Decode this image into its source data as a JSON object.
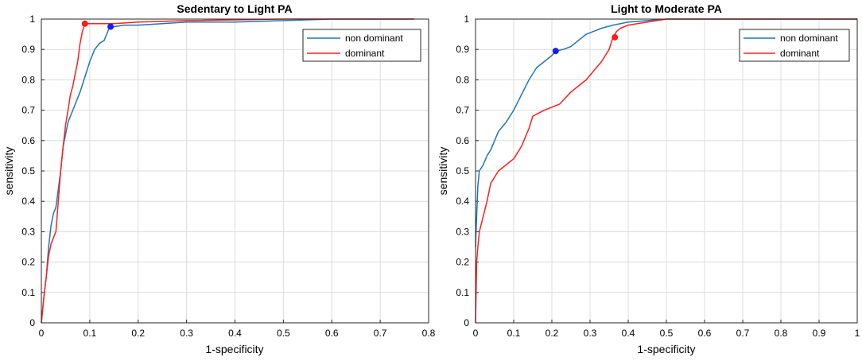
{
  "colors": {
    "non_dominant": "#1f77b4",
    "dominant": "#ff2020",
    "grid": "#dcdcdc",
    "marker_non_dominant": "#1a1aff",
    "marker_dominant": "#ff1a1a"
  },
  "chart_data": [
    {
      "type": "line",
      "title": "Sedentary to Light PA",
      "xlabel": "1-specificity",
      "ylabel": "sensitivity",
      "xlim": [
        0,
        0.8
      ],
      "ylim": [
        0,
        1
      ],
      "xticks": [
        "0",
        "0.1",
        "0.2",
        "0.3",
        "0.4",
        "0.5",
        "0.6",
        "0.7",
        "0.8"
      ],
      "yticks": [
        "0",
        "0.1",
        "0.2",
        "0.3",
        "0.4",
        "0.5",
        "0.6",
        "0.7",
        "0.8",
        "0.9",
        "1"
      ],
      "grid": true,
      "legend_position": "top-right",
      "series": [
        {
          "name": "non dominant",
          "x": [
            0,
            0.005,
            0.01,
            0.015,
            0.02,
            0.025,
            0.03,
            0.035,
            0.04,
            0.045,
            0.05,
            0.055,
            0.06,
            0.065,
            0.07,
            0.08,
            0.09,
            0.1,
            0.11,
            0.12,
            0.13,
            0.14,
            0.15,
            0.17,
            0.2,
            0.25,
            0.3,
            0.4,
            0.5,
            0.6,
            0.7,
            0.77
          ],
          "y": [
            0,
            0.08,
            0.15,
            0.25,
            0.32,
            0.36,
            0.38,
            0.44,
            0.5,
            0.58,
            0.62,
            0.66,
            0.68,
            0.7,
            0.72,
            0.76,
            0.81,
            0.86,
            0.9,
            0.92,
            0.93,
            0.97,
            0.975,
            0.98,
            0.98,
            0.985,
            0.99,
            0.99,
            0.995,
            1,
            1,
            1
          ]
        },
        {
          "name": "dominant",
          "x": [
            0,
            0.005,
            0.01,
            0.015,
            0.02,
            0.03,
            0.035,
            0.04,
            0.045,
            0.05,
            0.055,
            0.06,
            0.065,
            0.07,
            0.075,
            0.08,
            0.085,
            0.09,
            0.1,
            0.15,
            0.2,
            0.3,
            0.5,
            0.77
          ],
          "y": [
            0,
            0.08,
            0.15,
            0.22,
            0.26,
            0.3,
            0.4,
            0.5,
            0.58,
            0.65,
            0.7,
            0.75,
            0.78,
            0.82,
            0.86,
            0.92,
            0.96,
            0.985,
            0.985,
            0.985,
            0.99,
            0.995,
            1,
            1
          ]
        }
      ],
      "markers": [
        {
          "series": "non dominant",
          "x": 0.143,
          "y": 0.975
        },
        {
          "series": "dominant",
          "x": 0.09,
          "y": 0.985
        }
      ]
    },
    {
      "type": "line",
      "title": "Light to Moderate PA",
      "xlabel": "1-specificity",
      "ylabel": "sensitivity",
      "xlim": [
        0,
        1
      ],
      "ylim": [
        0,
        1
      ],
      "xticks": [
        "0",
        "0.1",
        "0.2",
        "0.3",
        "0.4",
        "0.5",
        "0.6",
        "0.7",
        "0.8",
        "0.9",
        "1"
      ],
      "yticks": [
        "0",
        "0.1",
        "0.2",
        "0.3",
        "0.4",
        "0.5",
        "0.6",
        "0.7",
        "0.8",
        "0.9",
        "1"
      ],
      "grid": true,
      "legend_position": "top-right",
      "series": [
        {
          "name": "non dominant",
          "x": [
            0,
            0.003,
            0.006,
            0.01,
            0.02,
            0.03,
            0.04,
            0.05,
            0.06,
            0.08,
            0.1,
            0.12,
            0.14,
            0.16,
            0.18,
            0.2,
            0.21,
            0.23,
            0.25,
            0.27,
            0.29,
            0.31,
            0.33,
            0.36,
            0.4,
            0.45,
            0.5,
            0.55,
            1
          ],
          "y": [
            0.25,
            0.35,
            0.45,
            0.5,
            0.52,
            0.55,
            0.57,
            0.6,
            0.63,
            0.66,
            0.7,
            0.75,
            0.8,
            0.84,
            0.86,
            0.88,
            0.895,
            0.9,
            0.91,
            0.93,
            0.95,
            0.96,
            0.97,
            0.98,
            0.99,
            0.995,
            1,
            1,
            1
          ]
        },
        {
          "name": "dominant",
          "x": [
            0,
            0.003,
            0.006,
            0.01,
            0.02,
            0.03,
            0.04,
            0.06,
            0.08,
            0.1,
            0.12,
            0.14,
            0.15,
            0.18,
            0.2,
            0.22,
            0.25,
            0.27,
            0.29,
            0.31,
            0.33,
            0.35,
            0.36,
            0.37,
            0.38,
            0.4,
            0.45,
            0.5,
            0.55,
            1
          ],
          "y": [
            0,
            0.2,
            0.25,
            0.3,
            0.35,
            0.4,
            0.46,
            0.5,
            0.52,
            0.54,
            0.58,
            0.64,
            0.68,
            0.7,
            0.71,
            0.72,
            0.76,
            0.78,
            0.8,
            0.83,
            0.86,
            0.9,
            0.94,
            0.96,
            0.97,
            0.98,
            0.99,
            1,
            1,
            1
          ]
        }
      ],
      "markers": [
        {
          "series": "non dominant",
          "x": 0.21,
          "y": 0.895
        },
        {
          "series": "dominant",
          "x": 0.365,
          "y": 0.94
        }
      ]
    }
  ]
}
